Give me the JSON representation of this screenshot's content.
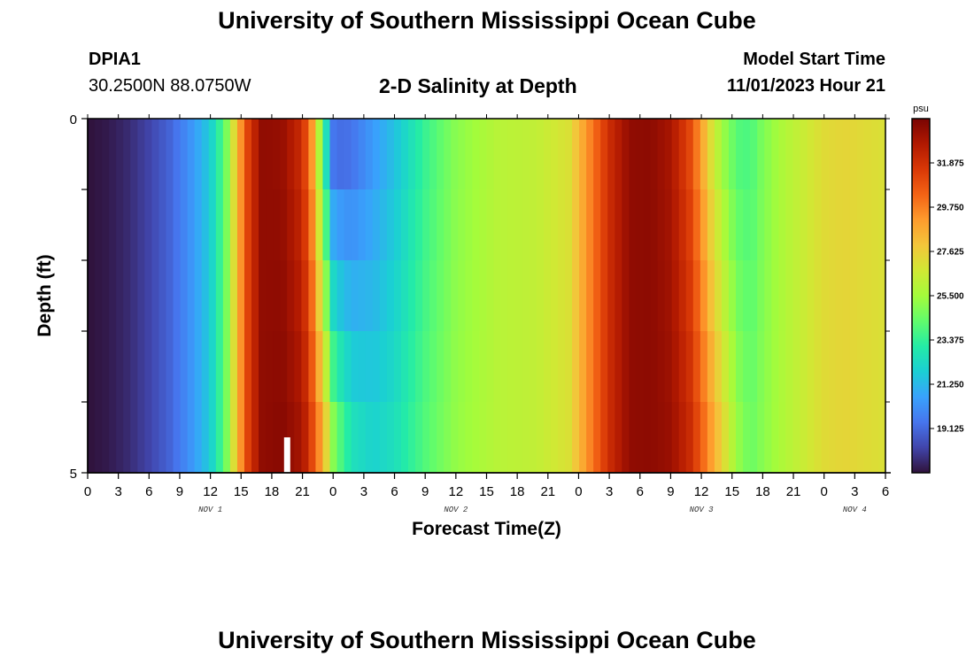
{
  "header": {
    "title_top": "University of Southern Mississippi Ocean Cube",
    "title_bottom": "University of Southern Mississippi Ocean Cube",
    "station_id": "DPIA1",
    "station_coords": "30.2500N  88.0750W",
    "plot_title": "2-D Salinity at Depth",
    "start_label": "Model Start Time",
    "start_value": "11/01/2023 Hour 21"
  },
  "chart_data": {
    "type": "heatmap",
    "title": "2-D Salinity at Depth",
    "xlabel": "Forecast Time(Z)",
    "ylabel": "Depth (ft)",
    "x_tick_labels": [
      "0",
      "3",
      "6",
      "9",
      "12",
      "15",
      "18",
      "21",
      "0",
      "3",
      "6",
      "9",
      "12",
      "15",
      "18",
      "21",
      "0",
      "3",
      "6",
      "9",
      "12",
      "15",
      "18",
      "21",
      "0",
      "3",
      "6"
    ],
    "day_labels": [
      {
        "label": "NOV 1",
        "hour": 12
      },
      {
        "label": "NOV 2",
        "hour": 36
      },
      {
        "label": "NOV 3",
        "hour": 60
      },
      {
        "label": "NOV 4",
        "hour": 75
      }
    ],
    "xlim_hours": [
      0,
      78
    ],
    "y_tick_labels": [
      "0",
      "5"
    ],
    "ylim": [
      0,
      5
    ],
    "depth_levels": 5,
    "colorbar": {
      "unit": "psu",
      "ticks": [
        "31.875",
        "29.750",
        "27.625",
        "25.500",
        "23.375",
        "21.250",
        "19.125"
      ],
      "min": 17.0,
      "max": 34.0,
      "colors": [
        "#30123b",
        "#4145ab",
        "#4675ed",
        "#39a2fc",
        "#1bcfd4",
        "#24eca6",
        "#61fc6c",
        "#a4fc3b",
        "#d1e834",
        "#f3c63a",
        "#fe9b2d",
        "#f36315",
        "#d93806",
        "#b11901",
        "#7a0403"
      ]
    },
    "salinity_profile": {
      "hours": [
        0,
        2,
        4,
        6,
        8,
        10,
        12,
        13.5,
        14.5,
        15.5,
        17,
        19,
        21,
        22,
        23,
        24,
        25,
        26,
        28,
        30,
        33,
        36,
        40,
        44,
        47,
        49,
        51,
        53,
        55,
        57,
        59,
        60,
        61,
        62,
        63,
        64,
        65,
        66,
        68,
        70,
        72,
        74,
        76,
        78
      ],
      "surface": [
        17.0,
        17.2,
        17.6,
        18.2,
        19.0,
        20.2,
        21.8,
        24.5,
        27.8,
        31.0,
        33.5,
        33.4,
        32.0,
        29.0,
        24.0,
        19.5,
        19.2,
        19.5,
        20.5,
        21.5,
        23.5,
        25.0,
        26.0,
        26.3,
        27.0,
        29.5,
        32.0,
        33.5,
        33.6,
        33.0,
        31.0,
        29.0,
        27.0,
        25.5,
        24.5,
        23.8,
        24.0,
        24.8,
        25.8,
        26.5,
        27.2,
        27.4,
        27.2,
        27.0
      ],
      "bottom": [
        17.0,
        17.2,
        17.6,
        18.2,
        19.0,
        20.2,
        21.8,
        24.5,
        27.8,
        31.0,
        33.5,
        33.7,
        33.0,
        31.0,
        28.5,
        25.0,
        23.5,
        22.5,
        22.0,
        22.5,
        24.0,
        25.2,
        26.0,
        26.3,
        27.0,
        29.5,
        32.0,
        33.5,
        33.6,
        33.3,
        32.0,
        30.5,
        29.0,
        27.5,
        26.0,
        24.8,
        24.5,
        25.0,
        25.8,
        26.5,
        27.2,
        27.4,
        27.2,
        27.0
      ]
    },
    "missing_marker_hour": 19.5
  }
}
